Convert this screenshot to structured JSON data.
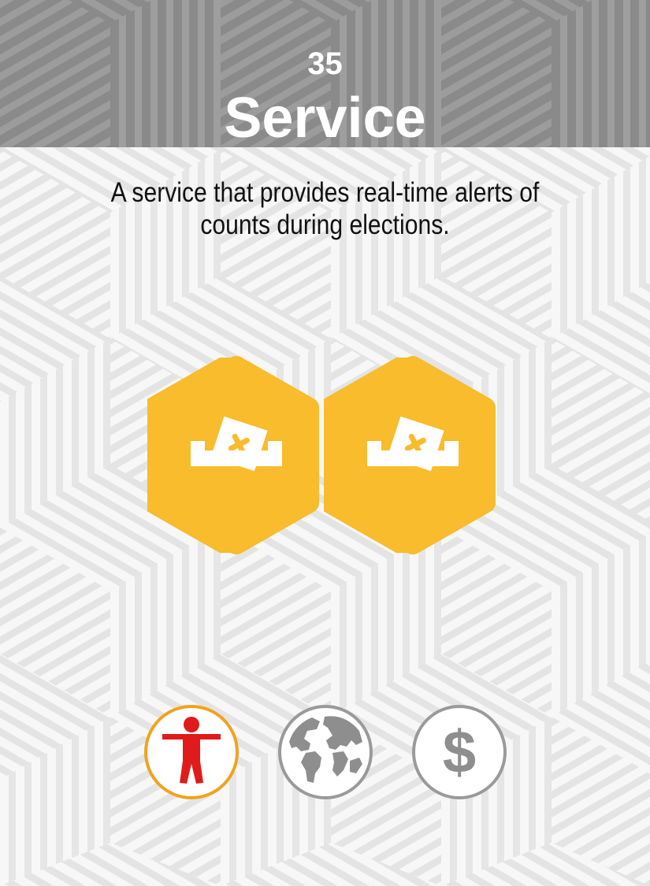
{
  "card": {
    "number": "35",
    "title": "Service",
    "description": "A service that provides real-time alerts of counts during elections."
  },
  "cost_icons": [
    {
      "icon": "ballot-box-icon",
      "color": "#f8bc2c"
    },
    {
      "icon": "ballot-box-icon",
      "color": "#f8bc2c"
    }
  ],
  "category_icons": [
    {
      "icon": "person-icon",
      "color": "#e01b1b",
      "ring_color": "#f2a21c",
      "active": true
    },
    {
      "icon": "globe-icon",
      "color": "#8e8e8e",
      "ring_color": "#9a9a9a",
      "active": false
    },
    {
      "icon": "dollar-icon",
      "color": "#8e8e8e",
      "ring_color": "#9a9a9a",
      "active": false
    }
  ],
  "colors": {
    "header_bg": "#8a8a8a",
    "body_bg": "#f7f7f7",
    "hex_fill": "#f8bc2c"
  }
}
